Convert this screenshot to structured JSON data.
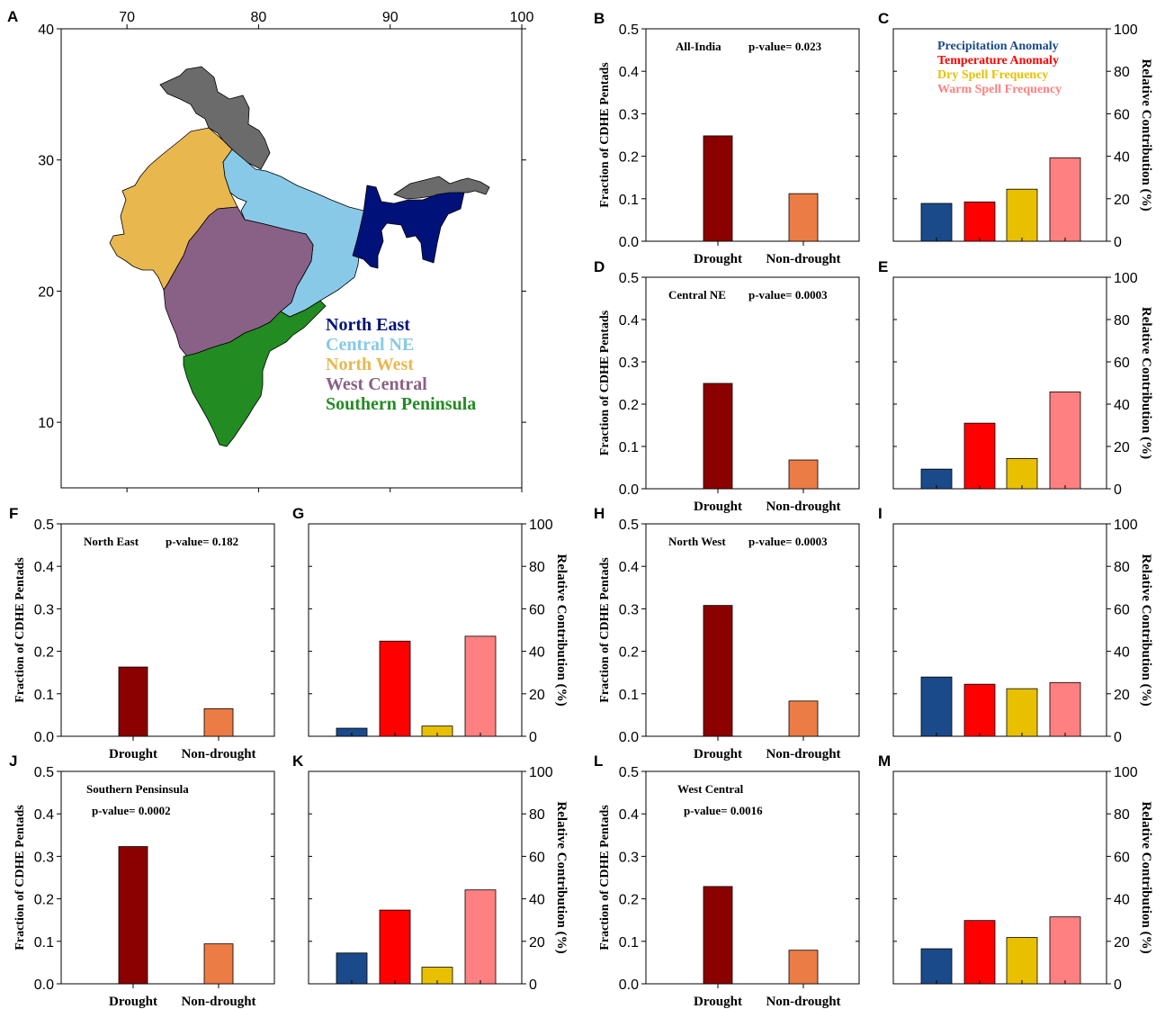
{
  "figure": {
    "map_panel": {
      "letter": "A",
      "lon_ticks": [
        "70",
        "80",
        "90",
        "100"
      ],
      "lat_ticks": [
        "40",
        "30",
        "20",
        "10"
      ],
      "legend": [
        {
          "label": "North East",
          "color": "#00127a"
        },
        {
          "label": "Central NE",
          "color": "#88c9e8"
        },
        {
          "label": "North West",
          "color": "#e8b84f"
        },
        {
          "label": "West Central",
          "color": "#8a6186"
        },
        {
          "label": "Southern Peninsula",
          "color": "#228b22"
        }
      ],
      "unassigned_region_color": "#6b6b6b"
    },
    "fraction_axis_label": "Fraction of CDHE Pentads",
    "contribution_axis_label": "Relative Contribution (%)",
    "fraction_ticks": [
      "0.0",
      "0.1",
      "0.2",
      "0.3",
      "0.4",
      "0.5"
    ],
    "contribution_ticks": [
      "0",
      "20",
      "40",
      "60",
      "80",
      "100"
    ],
    "bar_categories": [
      "Drought",
      "Non-drought"
    ],
    "bar_colors": [
      "#8b0000",
      "#ec7c45"
    ],
    "contribution_legend": [
      {
        "label": "Precipitation Anomaly",
        "color": "#1a4a8a"
      },
      {
        "label": "Temperature Anomaly",
        "color": "#ff0000"
      },
      {
        "label": "Dry Spell Frequency",
        "color": "#e8c000"
      },
      {
        "label": "Warm Spell Frequency",
        "color": "#ff8080"
      }
    ]
  },
  "chart_data": [
    {
      "panel": "B",
      "type": "bar",
      "region": "All-India",
      "pvalue": "p-value= 0.023",
      "categories": [
        "Drought",
        "Non-drought"
      ],
      "values": [
        0.248,
        0.112
      ],
      "ylabel": "Fraction of CDHE Pentads",
      "ylim": [
        0,
        0.5
      ]
    },
    {
      "panel": "C",
      "type": "bar",
      "categories": [
        "Precipitation Anomaly",
        "Temperature Anomaly",
        "Dry Spell Frequency",
        "Warm Spell Frequency"
      ],
      "values": [
        17.8,
        18.5,
        24.5,
        39.3
      ],
      "ylabel": "Relative Contribution (%)",
      "ylim": [
        0,
        100
      ]
    },
    {
      "panel": "D",
      "type": "bar",
      "region": "Central NE",
      "pvalue": "p-value= 0.0003",
      "categories": [
        "Drought",
        "Non-drought"
      ],
      "values": [
        0.249,
        0.068
      ],
      "ylabel": "Fraction of CDHE Pentads",
      "ylim": [
        0,
        0.5
      ]
    },
    {
      "panel": "E",
      "type": "bar",
      "categories": [
        "Precipitation Anomaly",
        "Temperature Anomaly",
        "Dry Spell Frequency",
        "Warm Spell Frequency"
      ],
      "values": [
        9.3,
        31.0,
        14.3,
        45.8
      ],
      "ylabel": "Relative Contribution (%)",
      "ylim": [
        0,
        100
      ]
    },
    {
      "panel": "F",
      "type": "bar",
      "region": "North East",
      "pvalue": "p-value= 0.182",
      "categories": [
        "Drought",
        "Non-drought"
      ],
      "values": [
        0.163,
        0.065
      ],
      "ylabel": "Fraction of CDHE Pentads",
      "ylim": [
        0,
        0.5
      ]
    },
    {
      "panel": "G",
      "type": "bar",
      "categories": [
        "Precipitation Anomaly",
        "Temperature Anomaly",
        "Dry Spell Frequency",
        "Warm Spell Frequency"
      ],
      "values": [
        3.8,
        44.8,
        4.8,
        47.1
      ],
      "ylabel": "Relative Contribution (%)",
      "ylim": [
        0,
        100
      ]
    },
    {
      "panel": "H",
      "type": "bar",
      "region": "North West",
      "pvalue": "p-value= 0.0003",
      "categories": [
        "Drought",
        "Non-drought"
      ],
      "values": [
        0.308,
        0.083
      ],
      "ylabel": "Fraction of CDHE Pentads",
      "ylim": [
        0,
        0.5
      ]
    },
    {
      "panel": "I",
      "type": "bar",
      "categories": [
        "Precipitation Anomaly",
        "Temperature Anomaly",
        "Dry Spell Frequency",
        "Warm Spell Frequency"
      ],
      "values": [
        27.9,
        24.5,
        22.4,
        25.3
      ],
      "ylabel": "Relative Contribution (%)",
      "ylim": [
        0,
        100
      ]
    },
    {
      "panel": "J",
      "type": "bar",
      "region": "Southern Pensinsula",
      "pvalue": "p-value= 0.0002",
      "categories": [
        "Drought",
        "Non-drought"
      ],
      "values": [
        0.323,
        0.094
      ],
      "ylabel": "Fraction of CDHE Pentads",
      "ylim": [
        0,
        0.5
      ]
    },
    {
      "panel": "K",
      "type": "bar",
      "categories": [
        "Precipitation Anomaly",
        "Temperature Anomaly",
        "Dry Spell Frequency",
        "Warm Spell Frequency"
      ],
      "values": [
        14.5,
        34.7,
        7.8,
        44.2
      ],
      "ylabel": "Relative Contribution (%)",
      "ylim": [
        0,
        100
      ]
    },
    {
      "panel": "L",
      "type": "bar",
      "region": "West Central",
      "pvalue": "p-value= 0.0016",
      "categories": [
        "Drought",
        "Non-drought"
      ],
      "values": [
        0.229,
        0.079
      ],
      "ylabel": "Fraction of CDHE Pentads",
      "ylim": [
        0,
        0.5
      ]
    },
    {
      "panel": "M",
      "type": "bar",
      "categories": [
        "Precipitation Anomaly",
        "Temperature Anomaly",
        "Dry Spell Frequency",
        "Warm Spell Frequency"
      ],
      "values": [
        16.5,
        29.8,
        21.8,
        31.5
      ],
      "ylabel": "Relative Contribution (%)",
      "ylim": [
        0,
        100
      ]
    }
  ]
}
